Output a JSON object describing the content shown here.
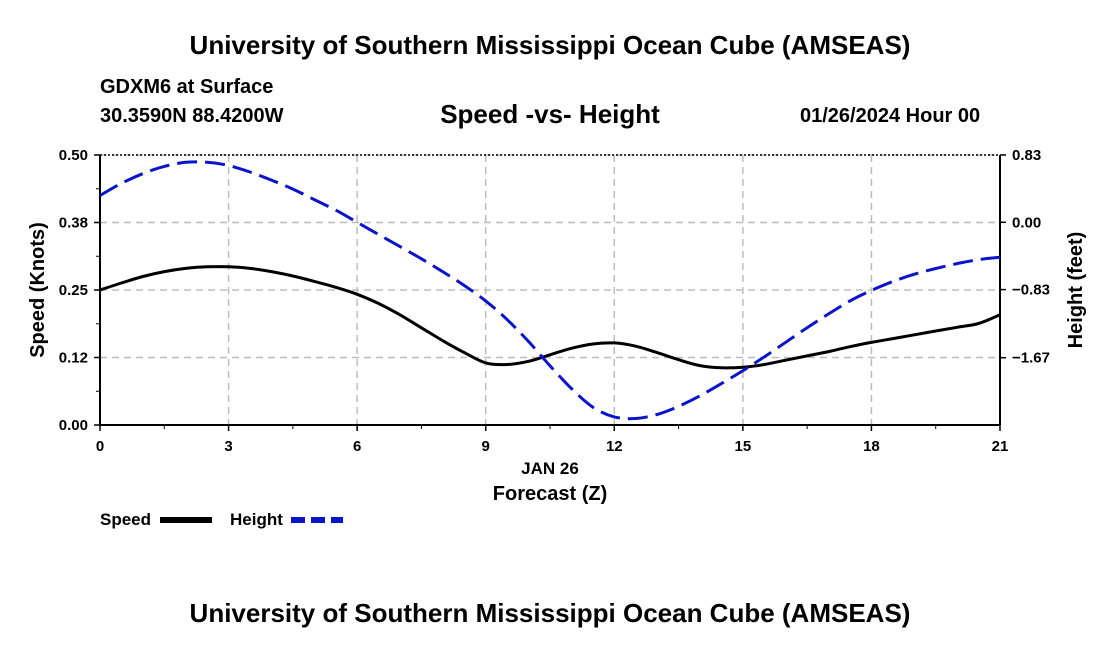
{
  "header": {
    "title": "University of Southern Mississippi Ocean Cube (AMSEAS)",
    "station": "GDXM6 at Surface",
    "coords": "30.3590N  88.4200W",
    "date": "01/26/2024 Hour 00"
  },
  "footer": {
    "title": "University of Southern Mississippi Ocean Cube (AMSEAS)"
  },
  "chart_data": {
    "type": "line",
    "title": "Speed -vs- Height",
    "xlabel": "Forecast (Z)",
    "x_date_label": "JAN 26",
    "ylabel_left": "Speed (Knots)",
    "ylabel_right": "Height (feet)",
    "xlim": [
      0,
      21
    ],
    "ylim_left": [
      0,
      0.5
    ],
    "ylim_right": [
      -2.5,
      0.83
    ],
    "x_ticks": [
      0,
      3,
      6,
      9,
      12,
      15,
      18,
      21
    ],
    "x_tick_labels": [
      "0",
      "3",
      "6",
      "9",
      "12",
      "15",
      "18",
      "21"
    ],
    "y_left_ticks": [
      0,
      0.125,
      0.25,
      0.375,
      0.5
    ],
    "y_left_tick_labels": [
      "0.00",
      "0.12",
      "0.25",
      "0.38",
      "0.50"
    ],
    "y_right_ticks": [
      0.83,
      0.0,
      -0.83,
      -1.67
    ],
    "y_right_tick_labels": [
      "0.83",
      "0.00",
      "−0.83",
      "−1.67"
    ],
    "grid": true,
    "legend": [
      {
        "label": "Speed",
        "color": "#000000",
        "dash": "solid"
      },
      {
        "label": "Height",
        "color": "#0a14c8",
        "dash": "dashed"
      }
    ],
    "series": [
      {
        "name": "Speed",
        "axis": "left",
        "color": "#000000",
        "x": [
          0,
          0.5,
          1,
          1.5,
          2,
          2.5,
          3,
          3.5,
          4,
          4.5,
          5,
          5.5,
          6,
          6.5,
          7,
          7.5,
          8,
          8.5,
          9,
          9.5,
          10,
          10.5,
          11,
          11.5,
          12,
          12.5,
          13,
          13.5,
          14,
          14.5,
          15,
          15.5,
          16,
          16.5,
          17,
          17.5,
          18,
          18.5,
          19,
          19.5,
          20,
          20.5,
          21
        ],
        "values": [
          0.25,
          0.263,
          0.275,
          0.284,
          0.29,
          0.293,
          0.293,
          0.29,
          0.284,
          0.276,
          0.266,
          0.255,
          0.242,
          0.225,
          0.204,
          0.18,
          0.156,
          0.134,
          0.115,
          0.112,
          0.118,
          0.13,
          0.142,
          0.15,
          0.152,
          0.146,
          0.134,
          0.121,
          0.11,
          0.106,
          0.107,
          0.112,
          0.12,
          0.128,
          0.136,
          0.145,
          0.153,
          0.16,
          0.167,
          0.174,
          0.181,
          0.188,
          0.204
        ]
      },
      {
        "name": "Height",
        "axis": "right",
        "color": "#0a14c8",
        "x": [
          0,
          0.5,
          1,
          1.5,
          2,
          2.5,
          3,
          3.5,
          4,
          4.5,
          5,
          5.5,
          6,
          6.5,
          7,
          7.5,
          8,
          8.5,
          9,
          9.5,
          10,
          10.5,
          11,
          11.5,
          12,
          12.5,
          13,
          13.5,
          14,
          14.5,
          15,
          15.5,
          16,
          16.5,
          17,
          17.5,
          18,
          18.5,
          19,
          19.5,
          20,
          20.5,
          21
        ],
        "values": [
          0.33,
          0.48,
          0.6,
          0.69,
          0.74,
          0.74,
          0.7,
          0.62,
          0.52,
          0.41,
          0.28,
          0.15,
          0.0,
          -0.15,
          -0.3,
          -0.45,
          -0.61,
          -0.78,
          -0.97,
          -1.2,
          -1.47,
          -1.77,
          -2.05,
          -2.28,
          -2.4,
          -2.42,
          -2.37,
          -2.27,
          -2.14,
          -1.99,
          -1.83,
          -1.66,
          -1.48,
          -1.3,
          -1.13,
          -0.97,
          -0.84,
          -0.73,
          -0.64,
          -0.57,
          -0.51,
          -0.46,
          -0.43
        ]
      }
    ]
  }
}
